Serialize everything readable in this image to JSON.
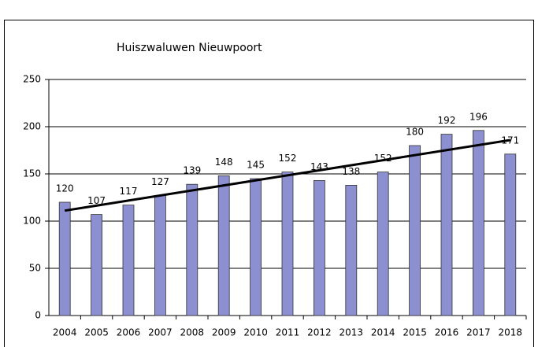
{
  "chart_data": {
    "type": "bar",
    "title": "Huiszwaluwen Nieuwpoort",
    "categories": [
      "2004",
      "2005",
      "2006",
      "2007",
      "2008",
      "2009",
      "2010",
      "2011",
      "2012",
      "2013",
      "2014",
      "2015",
      "2016",
      "2017",
      "2018"
    ],
    "values": [
      120,
      107,
      117,
      127,
      139,
      148,
      145,
      152,
      143,
      138,
      152,
      180,
      192,
      196,
      171
    ],
    "color": "#8c8fd0",
    "ylim": [
      0,
      250
    ],
    "yticks": [
      0,
      50,
      100,
      150,
      200,
      250
    ],
    "grid": true,
    "trendline": true
  }
}
